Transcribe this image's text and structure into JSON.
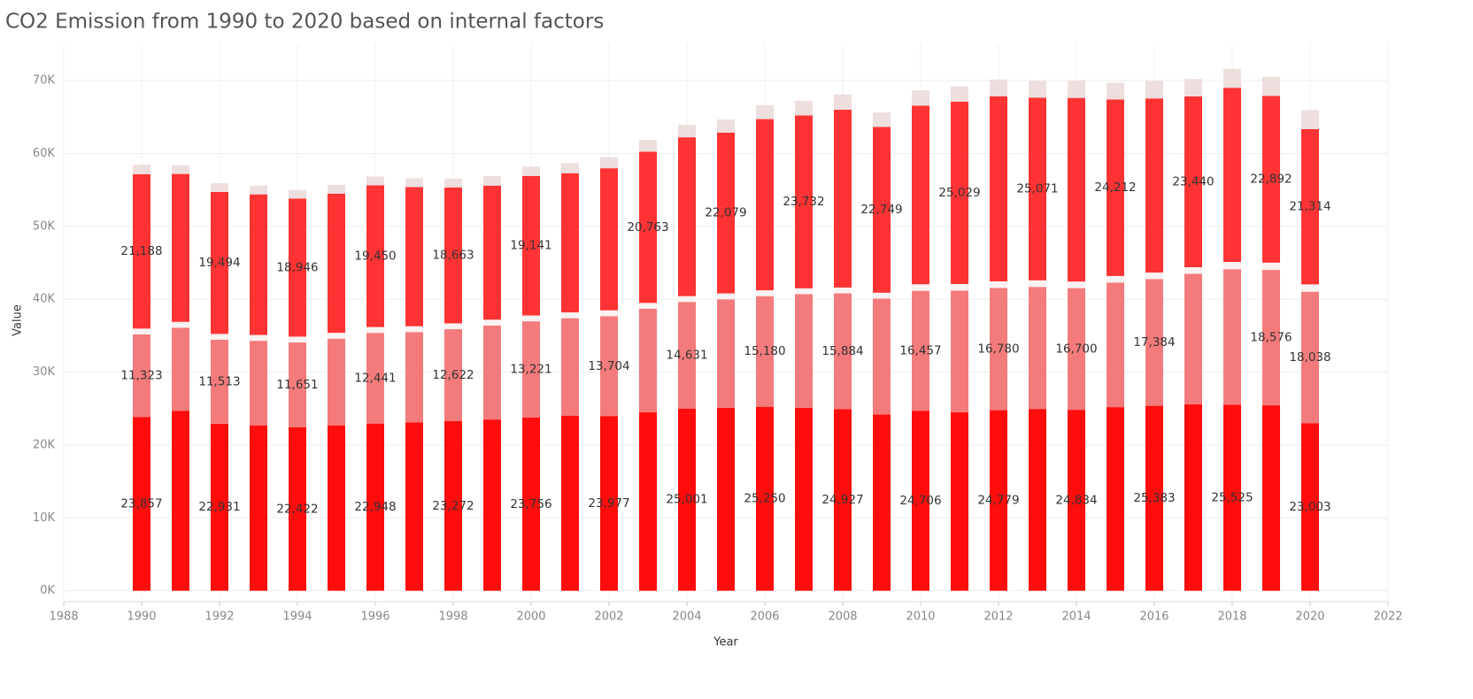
{
  "chart_data": {
    "type": "stacked_bar",
    "title": "CO2 Emission from 1990 to 2020 based on internal factors",
    "x_label": "Year",
    "y_label": "Value",
    "x": [
      1990,
      1991,
      1992,
      1993,
      1994,
      1995,
      1996,
      1997,
      1998,
      1999,
      2000,
      2001,
      2002,
      2003,
      2004,
      2005,
      2006,
      2007,
      2008,
      2009,
      2010,
      2011,
      2012,
      2013,
      2014,
      2015,
      2016,
      2017,
      2018,
      2019,
      2020
    ],
    "xlim": [
      1988,
      2022
    ],
    "xticks": [
      1988,
      1990,
      1992,
      1994,
      1996,
      1998,
      2000,
      2002,
      2004,
      2006,
      2008,
      2010,
      2012,
      2014,
      2016,
      2018,
      2020,
      2022
    ],
    "ylim": [
      -1500,
      75000
    ],
    "yticks": [
      {
        "value": 0,
        "label": "0K"
      },
      {
        "value": 10000,
        "label": "10K"
      },
      {
        "value": 20000,
        "label": "20K"
      },
      {
        "value": 30000,
        "label": "30K"
      },
      {
        "value": 40000,
        "label": "40K"
      },
      {
        "value": 50000,
        "label": "50K"
      },
      {
        "value": 60000,
        "label": "60K"
      },
      {
        "value": 70000,
        "label": "70K"
      }
    ],
    "grid": true,
    "series": [
      {
        "color": "#ff0d0d",
        "values": [
          23857,
          24700,
          22931,
          22700,
          22422,
          22700,
          22948,
          23100,
          23272,
          23500,
          23756,
          24000,
          23977,
          24500,
          25001,
          25100,
          25250,
          25100,
          24927,
          24200,
          24706,
          24500,
          24779,
          24950,
          24834,
          25200,
          25383,
          25600,
          25525,
          25450,
          23003
        ],
        "value_labels": [
          "23,857",
          null,
          "22,931",
          null,
          "22,422",
          null,
          "22,948",
          null,
          "23,272",
          null,
          "23,756",
          null,
          "23,977",
          null,
          "25,001",
          null,
          "25,250",
          null,
          "24,927",
          null,
          "24,706",
          null,
          "24,779",
          null,
          "24,834",
          null,
          "25,383",
          null,
          "25,525",
          null,
          "23,003"
        ]
      },
      {
        "color": "#f47b7b",
        "values": [
          11323,
          11400,
          11513,
          11600,
          11651,
          11900,
          12441,
          12400,
          12622,
          12900,
          13221,
          13400,
          13704,
          14200,
          14631,
          14900,
          15180,
          15600,
          15884,
          15900,
          16457,
          16700,
          16780,
          16750,
          16700,
          17100,
          17384,
          17900,
          18600,
          18576,
          18038
        ],
        "value_labels": [
          "11,323",
          null,
          "11,513",
          null,
          "11,651",
          null,
          "12,441",
          null,
          "12,622",
          null,
          "13,221",
          null,
          "13,704",
          null,
          "14,631",
          null,
          "15,180",
          null,
          "15,884",
          null,
          "16,457",
          null,
          "16,780",
          null,
          "16,700",
          null,
          "17,384",
          null,
          null,
          "18,576",
          "18,038"
        ]
      },
      {
        "color": "#faf1f1",
        "values": [
          800,
          800,
          800,
          800,
          800,
          800,
          800,
          800,
          800,
          800,
          800,
          800,
          800,
          800,
          800,
          800,
          800,
          800,
          800,
          800,
          900,
          900,
          900,
          900,
          900,
          900,
          900,
          900,
          1000,
          1000,
          1000
        ]
      },
      {
        "color": "#ff3333",
        "values": [
          21188,
          20300,
          19494,
          19300,
          18946,
          19100,
          19450,
          19100,
          18663,
          18400,
          19141,
          19100,
          19500,
          20763,
          21800,
          22079,
          23500,
          23732,
          24400,
          22749,
          24500,
          25029,
          25400,
          25071,
          25200,
          24212,
          23900,
          23440,
          23900,
          22892,
          21314
        ],
        "value_labels": [
          "21,188",
          null,
          "19,494",
          null,
          "18,946",
          null,
          "19,450",
          null,
          "18,663",
          null,
          "19,141",
          null,
          null,
          "20,763",
          null,
          "22,079",
          null,
          "23,732",
          null,
          "22,749",
          null,
          "25,029",
          null,
          "25,071",
          null,
          "24,212",
          null,
          "23,440",
          null,
          "22,892",
          "21,314"
        ]
      },
      {
        "color": "#eedede",
        "values": [
          1300,
          1200,
          1200,
          1200,
          1200,
          1200,
          1200,
          1200,
          1200,
          1300,
          1300,
          1400,
          1500,
          1600,
          1700,
          1800,
          1900,
          2000,
          2100,
          2000,
          2100,
          2100,
          2300,
          2300,
          2400,
          2300,
          2400,
          2400,
          2600,
          2600,
          2600
        ]
      }
    ]
  }
}
